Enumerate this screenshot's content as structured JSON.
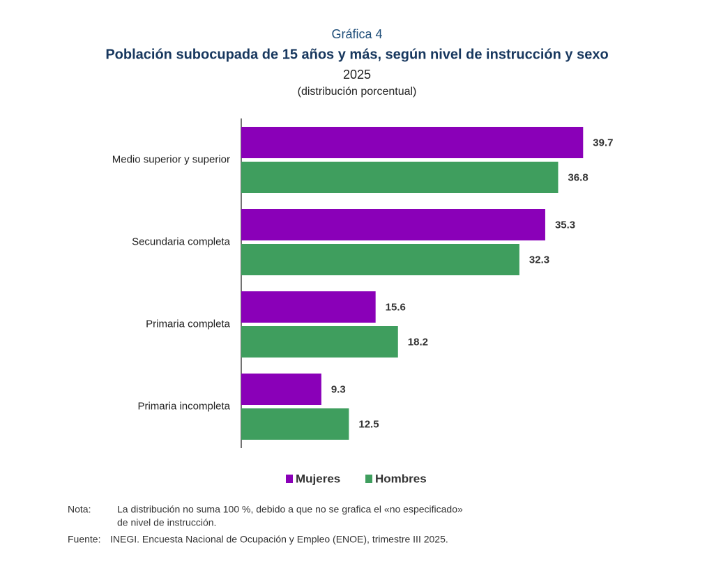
{
  "chart_data": {
    "type": "hbar",
    "kicker": "Gráfica 4",
    "title": "Población subocupada de 15 años y más, según nivel de instrucción y sexo",
    "subtitle": "2025",
    "unit_note": "(distribución porcentual)",
    "categories": [
      "Medio superior y superior",
      "Secundaria completa",
      "Primaria completa",
      "Primaria incompleta"
    ],
    "series": [
      {
        "name": "Mujeres",
        "color": "#8a00b8",
        "values": [
          39.7,
          35.3,
          15.6,
          9.3
        ]
      },
      {
        "name": "Hombres",
        "color": "#3f9e5e",
        "values": [
          36.8,
          32.3,
          18.2,
          12.5
        ]
      }
    ],
    "xlim": [
      0,
      40
    ],
    "legend": "bottom",
    "note_label": "Nota:",
    "note": [
      "La distribución no suma 100 %, debido a que no se grafica el «no especificado»",
      "de nivel de instrucción."
    ],
    "source_label": "Fuente:",
    "source": "INEGI. Encuesta Nacional de Ocupación y Empleo (ENOE), trimestre III 2025."
  }
}
